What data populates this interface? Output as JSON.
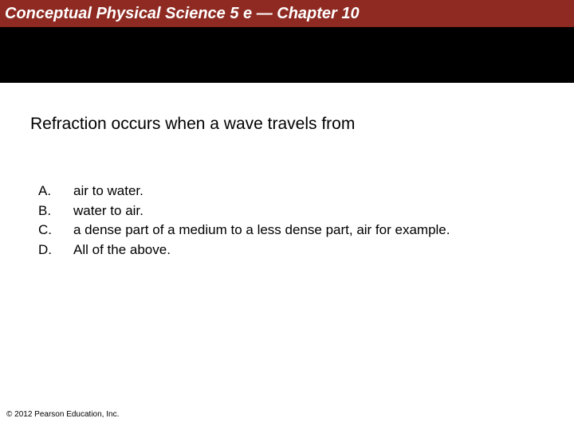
{
  "header": {
    "title": "Conceptual Physical Science 5 e — Chapter 10",
    "bg_color": "#8e2a22",
    "text_color": "#ffffff"
  },
  "question": "Refraction occurs when a wave travels from",
  "options": [
    {
      "letter": "A.",
      "text": "air to water."
    },
    {
      "letter": "B.",
      "text": "water to air."
    },
    {
      "letter": "C.",
      "text": "a dense part of a medium to a less dense part, air for example."
    },
    {
      "letter": "D.",
      "text": "All of the above."
    }
  ],
  "copyright": "© 2012 Pearson Education, Inc."
}
